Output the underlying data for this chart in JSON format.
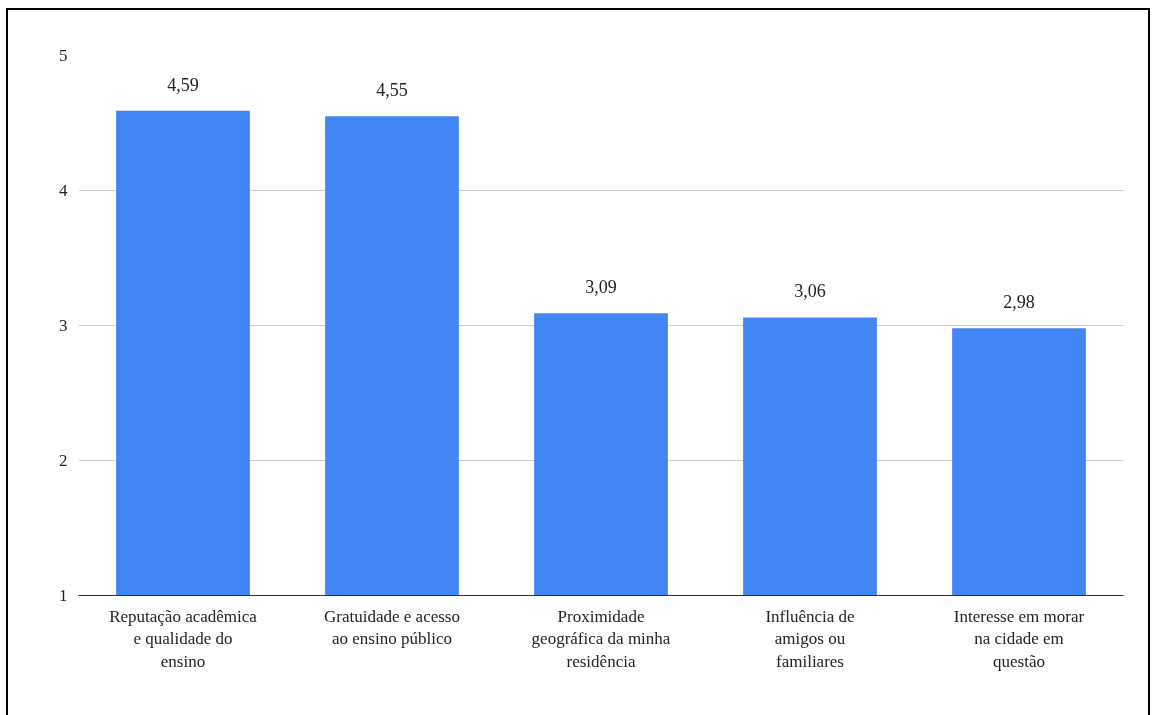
{
  "chart_data": {
    "type": "bar",
    "categories": [
      "Reputação acadêmica e qualidade do ensino",
      "Gratuidade e acesso ao ensino público",
      "Proximidade geográfica da minha residência",
      "Influência de amigos ou familiares",
      "Interesse em morar na cidade em questão"
    ],
    "values": [
      4.59,
      4.55,
      3.09,
      3.06,
      2.98
    ],
    "color": "#4285f4",
    "ylim": [
      1,
      5
    ],
    "yticks": [
      1,
      2,
      3,
      4,
      5
    ],
    "grid": "y",
    "data_labels": true,
    "value_labels": [
      "4,59",
      "4,55",
      "3,09",
      "3,06",
      "2,98"
    ]
  }
}
